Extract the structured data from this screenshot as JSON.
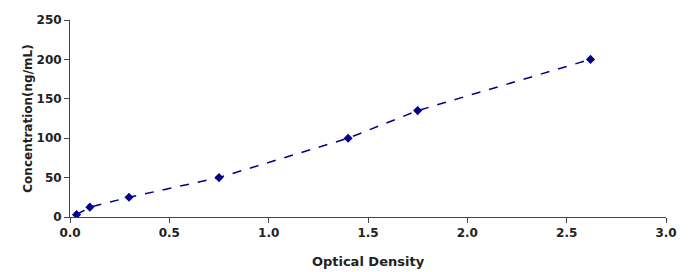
{
  "chart_data": {
    "type": "line",
    "x": [
      0.033,
      0.1,
      0.297,
      0.75,
      1.4,
      1.75,
      2.62
    ],
    "values": [
      3.0,
      12.5,
      25.0,
      50.0,
      100.0,
      135.0,
      200.0
    ],
    "color": "#00008B",
    "marker": "diamond",
    "line_style": "dashed",
    "xlabel": "Optical Density",
    "ylabel": "Concentration(ng/mL)",
    "xlim": [
      0,
      3
    ],
    "ylim": [
      0,
      250
    ],
    "xticks": [
      {
        "value": 0,
        "label": "0.0"
      },
      {
        "value": 0.5,
        "label": "0.5"
      },
      {
        "value": 1,
        "label": "1.0"
      },
      {
        "value": 1.5,
        "label": "1.5"
      },
      {
        "value": 2,
        "label": "2.0"
      },
      {
        "value": 2.5,
        "label": "2.5"
      },
      {
        "value": 3,
        "label": "3.0"
      }
    ],
    "yticks": [
      0,
      50,
      100,
      150,
      200,
      250
    ],
    "grid": false
  }
}
